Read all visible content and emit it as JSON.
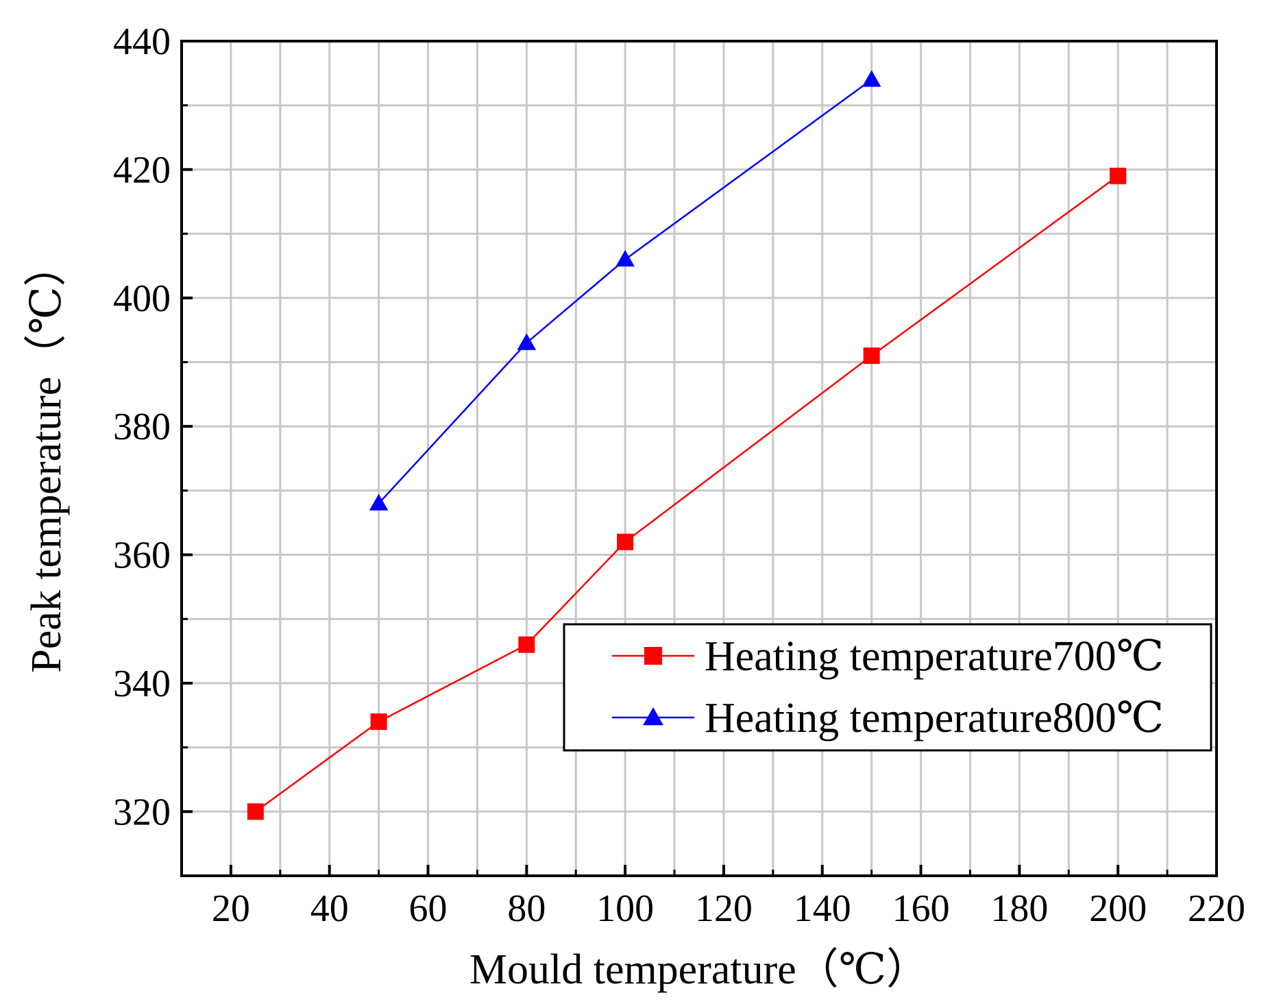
{
  "chart_data": {
    "type": "line",
    "title": "",
    "xlabel": "Mould temperature（℃）",
    "ylabel": "Peak temperature（℃）",
    "xlim": [
      10,
      220
    ],
    "ylim": [
      310,
      440
    ],
    "x_ticks": [
      20,
      40,
      60,
      80,
      100,
      120,
      140,
      160,
      180,
      200,
      220
    ],
    "x_tick_labels": [
      "20",
      "40",
      "60",
      "80",
      "100",
      "120",
      "140",
      "160",
      "180",
      "200",
      "220"
    ],
    "x_minor_ticks": [
      30,
      50,
      70,
      90,
      110,
      130,
      150,
      170,
      190,
      210
    ],
    "y_ticks": [
      320,
      340,
      360,
      380,
      400,
      420,
      440
    ],
    "y_tick_labels": [
      "320",
      "340",
      "360",
      "380",
      "400",
      "420",
      "440"
    ],
    "y_minor_ticks": [
      330,
      350,
      370,
      390,
      410,
      430
    ],
    "grid": true,
    "legend_position": "lower-right",
    "series": [
      {
        "name": "Heating temperature700℃",
        "color": "#ff0000",
        "marker": "square",
        "x": [
          25,
          50,
          80,
          100,
          150,
          200
        ],
        "y": [
          320,
          334,
          346,
          362,
          391,
          419
        ]
      },
      {
        "name": "Heating temperature800℃",
        "color": "#0000ff",
        "marker": "triangle",
        "x": [
          50,
          80,
          100,
          150
        ],
        "y": [
          368,
          393,
          406,
          434
        ]
      }
    ]
  }
}
